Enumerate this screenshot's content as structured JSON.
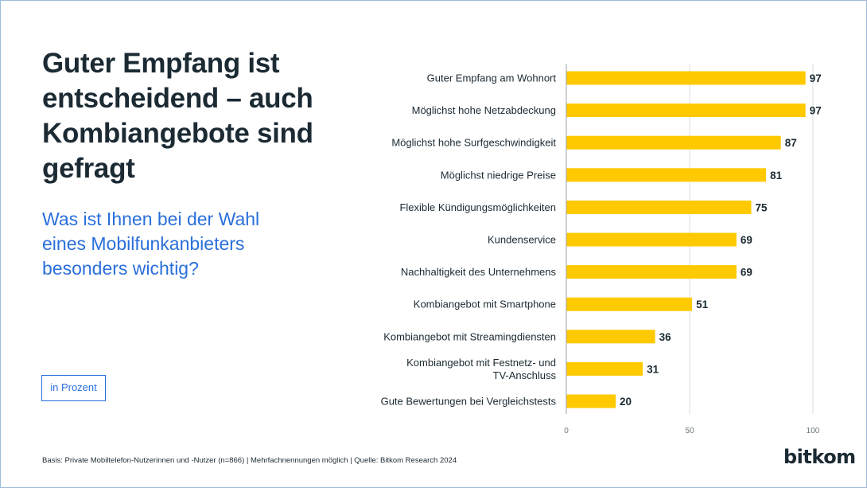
{
  "title": "Guter Empfang ist entscheidend – auch Kombiangebote sind gefragt",
  "subtitle": "Was ist Ihnen bei der Wahl eines Mobilfunkanbieters besonders wichtig?",
  "unit_label": "in Prozent",
  "footnote": "Basis: Private Mobiltelefon-Nutzerinnen und -Nutzer (n=866) | Mehrfachnennungen möglich | Quelle: Bitkom Research 2024",
  "logo": "bitkom",
  "colors": {
    "bar": "#ffc900",
    "title": "#1b2a33",
    "subtitle": "#2a6fdb",
    "grid": "#d8dcdf",
    "axis": "#9aa1a6"
  },
  "chart_data": {
    "type": "bar",
    "orientation": "horizontal",
    "categories": [
      [
        "Guter Empfang am Wohnort"
      ],
      [
        "Möglichst hohe Netzabdeckung"
      ],
      [
        "Möglichst hohe Surfgeschwindigkeit"
      ],
      [
        "Möglichst niedrige Preise"
      ],
      [
        "Flexible Kündigungsmöglichkeiten"
      ],
      [
        "Kundenservice"
      ],
      [
        "Nachhaltigkeit des Unternehmens"
      ],
      [
        "Kombiangebot mit Smartphone"
      ],
      [
        "Kombiangebot mit Streamingdiensten"
      ],
      [
        "Kombiangebot mit Festnetz- und",
        "TV-Anschluss"
      ],
      [
        "Gute Bewertungen bei Vergleichstests"
      ]
    ],
    "values": [
      97,
      97,
      87,
      81,
      75,
      69,
      69,
      51,
      36,
      31,
      20
    ],
    "xlim": [
      0,
      100
    ],
    "xticks": [
      0,
      50,
      100
    ],
    "grid": true
  }
}
